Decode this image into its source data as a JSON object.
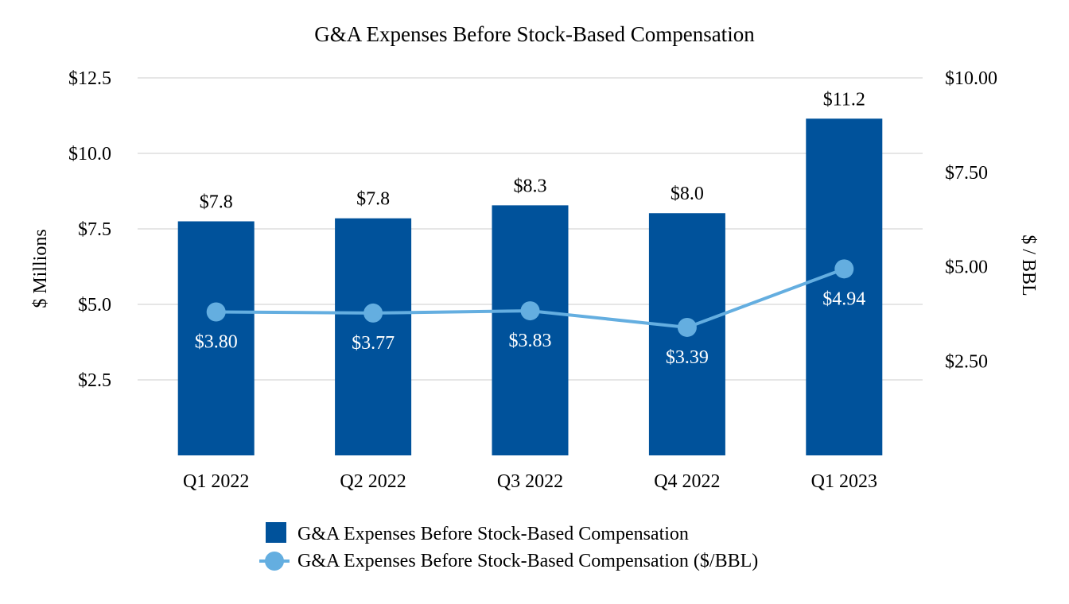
{
  "chart_data": {
    "type": "bar",
    "title": "G&A Expenses Before Stock-Based Compensation",
    "categories": [
      "Q1 2022",
      "Q2 2022",
      "Q3 2022",
      "Q4 2022",
      "Q1 2023"
    ],
    "ylabel": "$ Millions",
    "y2label": "$ / BBL",
    "ylim": [
      0,
      12.5
    ],
    "y2lim": [
      0,
      10
    ],
    "yticks": [
      2.5,
      5.0,
      7.5,
      10.0,
      12.5
    ],
    "ytick_labels": [
      "$2.5",
      "$5.0",
      "$7.5",
      "$10.0",
      "$12.5"
    ],
    "y2ticks": [
      2.5,
      5.0,
      7.5,
      10.0
    ],
    "y2tick_labels": [
      "$2.50",
      "$5.00",
      "$7.50",
      "$10.00"
    ],
    "grid": true,
    "legend_position": "bottom",
    "series": [
      {
        "name": "G&A Expenses Before Stock-Based Compensation",
        "type": "bar",
        "axis": "left",
        "color": "#00529B",
        "values": [
          7.75,
          7.85,
          8.28,
          8.02,
          11.15
        ],
        "labels": [
          "$7.8",
          "$7.8",
          "$8.3",
          "$8.0",
          "$11.2"
        ]
      },
      {
        "name": "G&A Expenses Before Stock-Based Compensation ($/BBL)",
        "type": "line",
        "axis": "right",
        "color": "#64AEE0",
        "values": [
          3.8,
          3.77,
          3.83,
          3.39,
          4.94
        ],
        "labels": [
          "$3.80",
          "$3.77",
          "$3.83",
          "$3.39",
          "$4.94"
        ]
      }
    ]
  }
}
